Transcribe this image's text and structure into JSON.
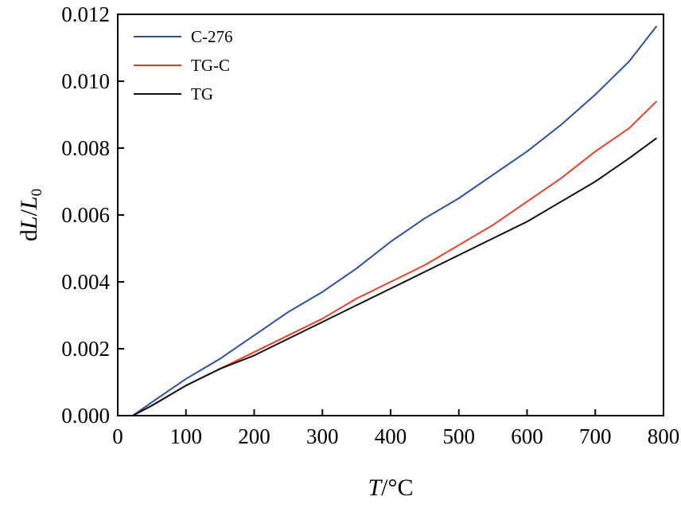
{
  "chart_data": {
    "type": "line",
    "xlabel": {
      "italic": "T",
      "rest": "/°C"
    },
    "ylabel": {
      "d": "d",
      "L": "L",
      "slash": "/",
      "L0": "L",
      "sub": "0"
    },
    "xlim": [
      0,
      800
    ],
    "ylim": [
      0,
      0.012
    ],
    "xticks": [
      0,
      100,
      200,
      300,
      400,
      500,
      600,
      700,
      800
    ],
    "yticks": [
      0.0,
      0.002,
      0.004,
      0.006,
      0.008,
      0.01,
      0.012
    ],
    "xtick_labels": [
      "0",
      "100",
      "200",
      "300",
      "400",
      "500",
      "600",
      "700",
      "800"
    ],
    "ytick_labels": [
      "0.000",
      "0.002",
      "0.004",
      "0.006",
      "0.008",
      "0.010",
      "0.012"
    ],
    "grid": false,
    "legend_position": "top-left",
    "series": [
      {
        "name": "C-276",
        "color": "#2e4fa8",
        "x": [
          22,
          50,
          100,
          150,
          200,
          250,
          300,
          350,
          400,
          450,
          500,
          550,
          600,
          650,
          700,
          750,
          790
        ],
        "y": [
          0.0,
          0.0004,
          0.0011,
          0.0017,
          0.0024,
          0.0031,
          0.0037,
          0.0044,
          0.0052,
          0.0059,
          0.0065,
          0.0072,
          0.0079,
          0.0087,
          0.0096,
          0.0106,
          0.01165
        ]
      },
      {
        "name": "TG-C",
        "color": "#e8402a",
        "x": [
          22,
          50,
          100,
          150,
          200,
          250,
          300,
          350,
          400,
          450,
          500,
          550,
          600,
          650,
          700,
          750,
          790
        ],
        "y": [
          0.0,
          0.0003,
          0.0009,
          0.0014,
          0.0019,
          0.0024,
          0.0029,
          0.0035,
          0.004,
          0.0045,
          0.0051,
          0.0057,
          0.0064,
          0.0071,
          0.0079,
          0.0086,
          0.0094
        ]
      },
      {
        "name": "TG",
        "color": "#111111",
        "x": [
          22,
          50,
          100,
          150,
          200,
          250,
          300,
          350,
          400,
          450,
          500,
          550,
          600,
          650,
          700,
          750,
          790
        ],
        "y": [
          0.0,
          0.0003,
          0.0009,
          0.0014,
          0.0018,
          0.0023,
          0.0028,
          0.0033,
          0.0038,
          0.0043,
          0.0048,
          0.0053,
          0.0058,
          0.0064,
          0.007,
          0.0077,
          0.0083
        ]
      }
    ]
  }
}
